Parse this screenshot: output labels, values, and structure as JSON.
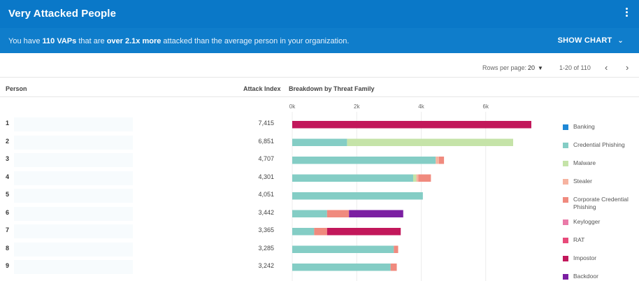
{
  "header": {
    "title": "Very Attacked People",
    "summary_pre": "You have ",
    "summary_count": "110 VAPs",
    "summary_mid": " that are ",
    "summary_factor": "over 2.1x more",
    "summary_post": " attacked than the average person in your organization.",
    "show_chart_label": "SHOW CHART"
  },
  "pagination": {
    "rows_per_page_label": "Rows per page:",
    "rows_per_page_value": "20",
    "range_label": "1-20 of 110"
  },
  "table": {
    "columns": {
      "person": "Person",
      "attack_index": "Attack Index",
      "breakdown": "Breakdown by Threat Family"
    },
    "rows": [
      {
        "rank": "1",
        "name": "",
        "attack_index": "7,415"
      },
      {
        "rank": "2",
        "name": "",
        "attack_index": "6,851"
      },
      {
        "rank": "3",
        "name": "",
        "attack_index": "4,707"
      },
      {
        "rank": "4",
        "name": "",
        "attack_index": "4,301"
      },
      {
        "rank": "5",
        "name": "",
        "attack_index": "4,051"
      },
      {
        "rank": "6",
        "name": "",
        "attack_index": "3,442"
      },
      {
        "rank": "7",
        "name": "",
        "attack_index": "3,365"
      },
      {
        "rank": "8",
        "name": "",
        "attack_index": "3,285"
      },
      {
        "rank": "9",
        "name": "",
        "attack_index": "3,242"
      }
    ]
  },
  "chart_data": {
    "type": "bar",
    "orientation": "horizontal",
    "stacked": true,
    "title": "Breakdown by Threat Family",
    "xlim": [
      0,
      7600
    ],
    "xticks": [
      {
        "value": 0,
        "label": "0k"
      },
      {
        "value": 2000,
        "label": "2k"
      },
      {
        "value": 4000,
        "label": "4k"
      },
      {
        "value": 6000,
        "label": "6k"
      }
    ],
    "categories": [
      "1",
      "2",
      "3",
      "4",
      "5",
      "6",
      "7",
      "8",
      "9"
    ],
    "legend_position": "right",
    "series": [
      {
        "name": "Banking",
        "color": "#1e88d6",
        "values": [
          0,
          0,
          0,
          0,
          0,
          0,
          0,
          0,
          0
        ]
      },
      {
        "name": "Credential Phishing",
        "color": "#84cdc5",
        "values": [
          0,
          1700,
          4450,
          3750,
          4051,
          1080,
          680,
          3150,
          3050
        ]
      },
      {
        "name": "Malware",
        "color": "#c5e3a8",
        "values": [
          0,
          5151,
          0,
          100,
          0,
          0,
          0,
          0,
          0
        ]
      },
      {
        "name": "Stealer",
        "color": "#f6b3a0",
        "values": [
          0,
          0,
          100,
          60,
          0,
          0,
          0,
          0,
          0
        ]
      },
      {
        "name": "Corporate Credential Phishing",
        "color": "#f08a7e",
        "values": [
          0,
          0,
          157,
          391,
          0,
          680,
          400,
          135,
          192
        ]
      },
      {
        "name": "Keylogger",
        "color": "#ea7aa8",
        "values": [
          0,
          0,
          0,
          0,
          0,
          0,
          0,
          0,
          0
        ]
      },
      {
        "name": "RAT",
        "color": "#e84a7a",
        "values": [
          0,
          0,
          0,
          0,
          0,
          0,
          0,
          0,
          0
        ]
      },
      {
        "name": "Impostor",
        "color": "#c2185b",
        "values": [
          7415,
          0,
          0,
          0,
          0,
          0,
          2285,
          0,
          0
        ]
      },
      {
        "name": "Backdoor",
        "color": "#7b1fa2",
        "values": [
          0,
          0,
          0,
          0,
          0,
          1682,
          0,
          0,
          0
        ]
      }
    ]
  }
}
